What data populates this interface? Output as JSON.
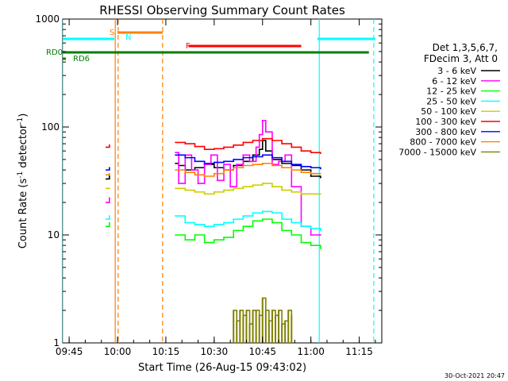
{
  "chart_data": {
    "type": "line",
    "title": "RHESSI Observing Summary Count Rates",
    "xlabel": "Start Time (26-Aug-15 09:43:02)",
    "ylabel_parts": [
      "Count Rate (s",
      "-1",
      " detector",
      "-1",
      ")"
    ],
    "x_unit": "minutes after 09:43:02 (axis labelled in clock time)",
    "xlim": [
      0,
      99
    ],
    "ylim": [
      1,
      1000
    ],
    "yscale": "log",
    "x_ticks": [
      {
        "m": 2,
        "label": "09:45"
      },
      {
        "m": 17,
        "label": "10:00"
      },
      {
        "m": 32,
        "label": "10:15"
      },
      {
        "m": 47,
        "label": "10:30"
      },
      {
        "m": 62,
        "label": "10:45"
      },
      {
        "m": 77,
        "label": "11:00"
      },
      {
        "m": 92,
        "label": "11:15"
      }
    ],
    "y_ticks": [
      {
        "v": 1,
        "label": "1"
      },
      {
        "v": 10,
        "label": "10"
      },
      {
        "v": 100,
        "label": "100"
      },
      {
        "v": 1000,
        "label": "1000"
      }
    ],
    "legend_header": [
      "Det 1,3,5,6,7,",
      "FDecim 3, Att 0"
    ],
    "legend_placement": "right",
    "footer_date": "30-Oct-2021 20:47",
    "series": [
      {
        "name": "3 - 6 keV",
        "color": "#000000",
        "x": [
          13.5,
          14.5,
          35,
          36,
          38,
          41,
          44,
          47,
          50,
          53,
          56,
          59,
          61,
          62,
          63,
          65,
          68,
          71,
          74,
          77,
          80
        ],
        "y": [
          33,
          35,
          46,
          44,
          40,
          42,
          45,
          42,
          40,
          44,
          48,
          55,
          62,
          75,
          60,
          50,
          46,
          44,
          40,
          35,
          34
        ]
      },
      {
        "name": "6 - 12 keV",
        "color": "#ff00ff",
        "x": [
          13.5,
          14.5,
          35,
          36,
          38,
          40,
          42,
          44,
          46,
          48,
          50,
          52,
          54,
          56,
          58,
          60,
          61,
          62,
          63,
          65,
          67,
          69,
          71,
          74,
          77,
          80
        ],
        "y": [
          20,
          22,
          58,
          30,
          55,
          40,
          30,
          45,
          55,
          32,
          45,
          28,
          45,
          55,
          48,
          65,
          85,
          115,
          90,
          45,
          48,
          55,
          28,
          12,
          10,
          10
        ]
      },
      {
        "name": "12 - 25 keV",
        "color": "#00ff00",
        "x": [
          13.5,
          14.5,
          35,
          38,
          41,
          44,
          47,
          50,
          53,
          56,
          59,
          62,
          65,
          68,
          71,
          74,
          77,
          80
        ],
        "y": [
          12,
          13,
          10,
          9,
          10,
          8.5,
          9,
          9.5,
          11,
          12,
          13.5,
          14,
          13,
          11,
          10,
          8.5,
          8,
          7.5
        ]
      },
      {
        "name": "25 - 50 keV",
        "color": "#00ffff",
        "x": [
          13.5,
          14.5,
          35,
          38,
          41,
          44,
          47,
          50,
          53,
          56,
          59,
          62,
          65,
          68,
          71,
          74,
          77,
          80
        ],
        "y": [
          14,
          15,
          15,
          13,
          12.5,
          12,
          12.5,
          13,
          14,
          15,
          16,
          16.5,
          16,
          14,
          13,
          12,
          11.5,
          11
        ]
      },
      {
        "name": "50 - 100 keV",
        "color": "#cccc00",
        "x": [
          13.5,
          14.5,
          35,
          38,
          41,
          44,
          47,
          50,
          53,
          56,
          59,
          62,
          65,
          68,
          71,
          74,
          77,
          80
        ],
        "y": [
          27,
          27,
          27,
          26,
          25,
          24,
          25,
          26,
          27,
          28,
          29,
          30,
          28,
          26,
          25,
          24,
          24,
          24
        ]
      },
      {
        "name": "100 - 300 keV",
        "color": "#ff0000",
        "x": [
          13.5,
          14.5,
          35,
          38,
          41,
          44,
          47,
          50,
          53,
          56,
          59,
          62,
          65,
          68,
          71,
          74,
          77,
          80
        ],
        "y": [
          65,
          68,
          72,
          70,
          66,
          62,
          63,
          65,
          68,
          72,
          75,
          78,
          75,
          70,
          65,
          60,
          58,
          57
        ]
      },
      {
        "name": "300 - 800 keV",
        "color": "#0000ff",
        "x": [
          13.5,
          14.5,
          35,
          38,
          41,
          44,
          47,
          50,
          53,
          56,
          59,
          62,
          65,
          68,
          71,
          74,
          77,
          80
        ],
        "y": [
          40,
          42,
          55,
          52,
          48,
          46,
          47,
          48,
          50,
          52,
          53,
          55,
          52,
          48,
          45,
          43,
          42,
          41
        ]
      },
      {
        "name": "800 - 7000 keV",
        "color": "#ff8000",
        "x": [
          13.5,
          14.5,
          35,
          38,
          41,
          44,
          47,
          50,
          53,
          56,
          59,
          62,
          65,
          68,
          71,
          74,
          77,
          80
        ],
        "y": [
          36,
          37,
          40,
          38,
          36,
          35,
          37,
          40,
          42,
          44,
          45,
          46,
          44,
          42,
          40,
          38,
          37,
          37
        ]
      },
      {
        "name": "7000 - 15000 keV",
        "color": "#808000",
        "x": [
          53,
          54,
          55,
          56,
          57,
          58,
          59,
          60,
          61,
          62,
          63,
          64,
          65,
          66,
          67,
          68,
          69,
          70,
          71
        ],
        "y": [
          2,
          1.6,
          2,
          1.8,
          2,
          1.5,
          2,
          2,
          1.8,
          2.6,
          2,
          1.6,
          2,
          1.8,
          2,
          1.5,
          1.6,
          2,
          1.8
        ]
      }
    ],
    "flag_bars": [
      {
        "label": "S",
        "color": "#ff8000",
        "x0": 17,
        "x1": 31
      },
      {
        "label": "N",
        "color": "#00ffff",
        "x0": 0,
        "x1": 16
      },
      {
        "label": "N",
        "color": "#00ffff",
        "x0": 79,
        "x1": 97
      },
      {
        "label": "F",
        "color": "#ff0000",
        "x0": 39,
        "x1": 74
      },
      {
        "label": "RD0",
        "color": "#008000",
        "x0": 0,
        "x1": 95
      },
      {
        "label": "RD6",
        "color": "#008000",
        "x0": 0,
        "x1": 1
      }
    ],
    "vlines": [
      {
        "x": 0,
        "color": "#00ffff",
        "style": "solid"
      },
      {
        "x": 16.3,
        "color": "#ff8000",
        "style": "solid"
      },
      {
        "x": 17.2,
        "color": "#ff8000",
        "style": "dashed"
      },
      {
        "x": 31,
        "color": "#ff8000",
        "style": "dashed"
      },
      {
        "x": 79.6,
        "color": "#00ffff",
        "style": "solid"
      },
      {
        "x": 96.5,
        "color": "#00ffff",
        "style": "dashed"
      }
    ]
  }
}
